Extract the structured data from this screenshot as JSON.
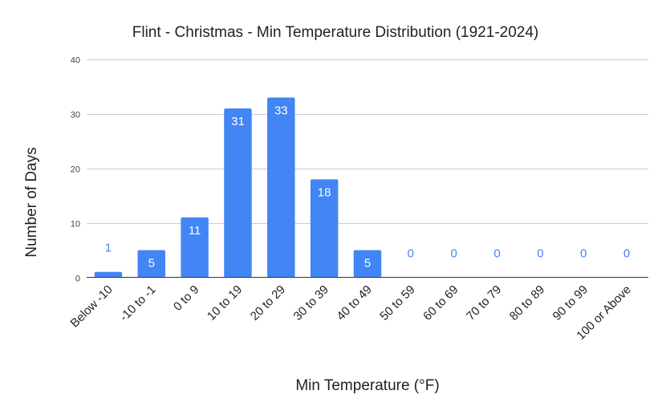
{
  "chart_data": {
    "type": "bar",
    "title": "Flint - Christmas - Min Temperature Distribution (1921-2024)",
    "xlabel": "Min Temperature (°F)",
    "ylabel": "Number of Days",
    "categories": [
      "Below -10",
      "-10 to -1",
      "0 to 9",
      "10 to 19",
      "20 to 29",
      "30 to 39",
      "40 to 49",
      "50 to 59",
      "60 to 69",
      "70 to 79",
      "80 to 89",
      "90 to 99",
      "100 or Above"
    ],
    "values": [
      1,
      5,
      11,
      31,
      33,
      18,
      5,
      0,
      0,
      0,
      0,
      0,
      0
    ],
    "ylim": [
      0,
      40
    ],
    "yticks": [
      "0",
      "10",
      "20",
      "30",
      "40"
    ],
    "grid": true,
    "legend": "none",
    "colors": {
      "bar": "#4285f4",
      "label_inside": "#ffffff",
      "label_outside": "#4285f4",
      "grid": "#cccccc",
      "axis": "#333333",
      "text": "#222222",
      "tick_text": "#444444"
    }
  }
}
